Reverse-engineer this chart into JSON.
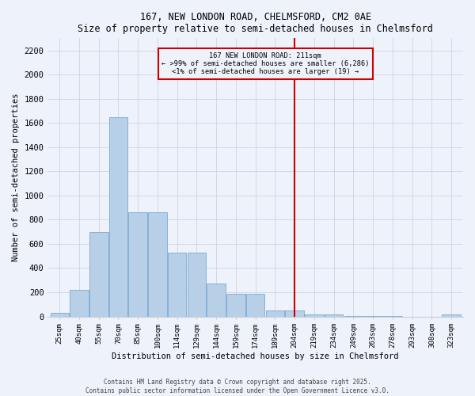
{
  "title": "167, NEW LONDON ROAD, CHELMSFORD, CM2 0AE",
  "subtitle": "Size of property relative to semi-detached houses in Chelmsford",
  "xlabel": "Distribution of semi-detached houses by size in Chelmsford",
  "ylabel": "Number of semi-detached properties",
  "categories": [
    "25sqm",
    "40sqm",
    "55sqm",
    "70sqm",
    "85sqm",
    "100sqm",
    "114sqm",
    "129sqm",
    "144sqm",
    "159sqm",
    "174sqm",
    "189sqm",
    "204sqm",
    "219sqm",
    "234sqm",
    "249sqm",
    "263sqm",
    "278sqm",
    "293sqm",
    "308sqm",
    "323sqm"
  ],
  "values": [
    30,
    220,
    700,
    1650,
    860,
    860,
    530,
    530,
    270,
    185,
    185,
    50,
    50,
    15,
    15,
    5,
    5,
    5,
    0,
    0,
    20
  ],
  "bar_color": "#b8cfe8",
  "bar_edge_color": "#7aaad0",
  "vline_index": 12,
  "annotation_title": "167 NEW LONDON ROAD: 211sqm",
  "annotation_line2": "← >99% of semi-detached houses are smaller (6,286)",
  "annotation_line3": "<1% of semi-detached houses are larger (19) →",
  "vline_color": "#cc0000",
  "ylim": [
    0,
    2300
  ],
  "yticks": [
    0,
    200,
    400,
    600,
    800,
    1000,
    1200,
    1400,
    1600,
    1800,
    2000,
    2200
  ],
  "footer_line1": "Contains HM Land Registry data © Crown copyright and database right 2025.",
  "footer_line2": "Contains public sector information licensed under the Open Government Licence v3.0.",
  "background_color": "#eef2fb",
  "grid_color": "#c8cdd8"
}
